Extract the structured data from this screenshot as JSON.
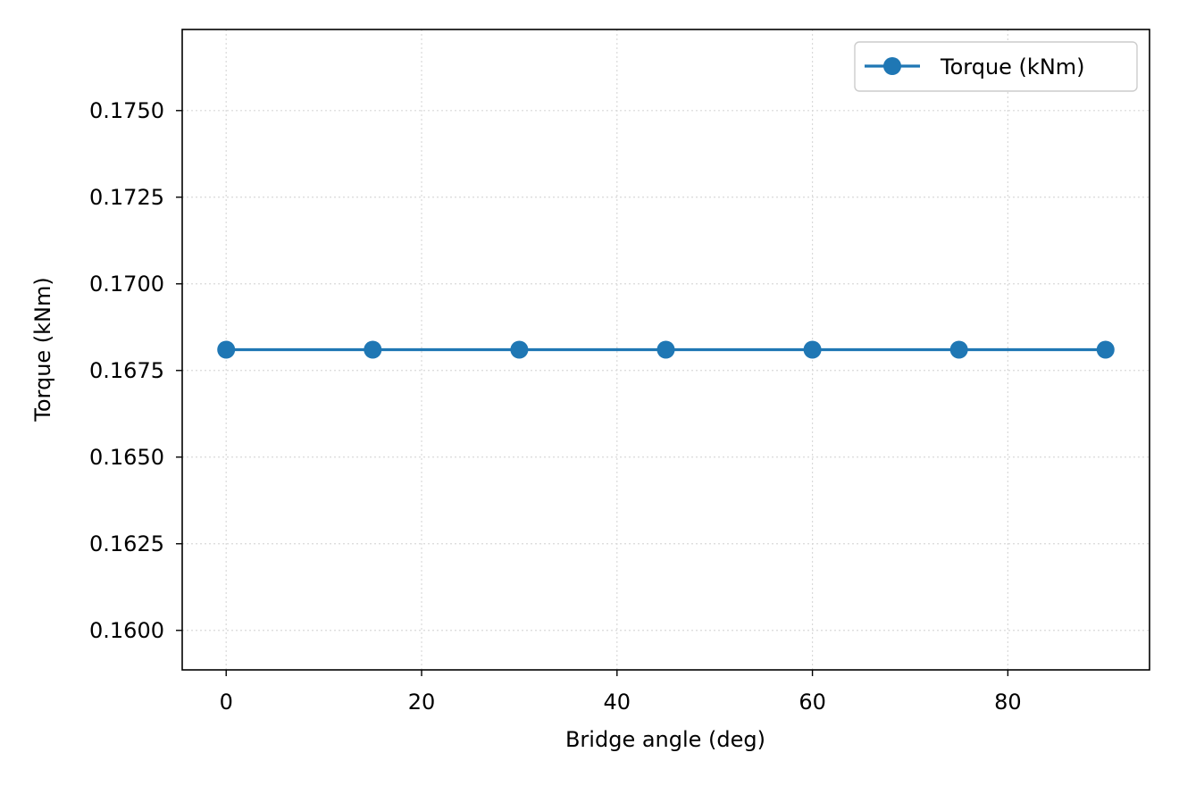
{
  "chart_data": {
    "type": "line",
    "title": "",
    "xlabel": "Bridge angle (deg)",
    "ylabel": "Torque (kNm)",
    "xlim": [
      -4.5,
      94.5
    ],
    "ylim": [
      0.15886,
      0.17734
    ],
    "xticks": [
      0,
      20,
      40,
      60,
      80
    ],
    "xtick_labels": [
      "0",
      "20",
      "40",
      "60",
      "80"
    ],
    "yticks": [
      0.16,
      0.1625,
      0.165,
      0.1675,
      0.17,
      0.1725,
      0.175
    ],
    "ytick_labels": [
      "0.1600",
      "0.1625",
      "0.1650",
      "0.1675",
      "0.1700",
      "0.1725",
      "0.1750"
    ],
    "grid": true,
    "legend_position": "top-right",
    "series": [
      {
        "name": "Torque (kNm)",
        "color": "#1f77b4",
        "marker": "circle",
        "x": [
          0,
          15,
          30,
          45,
          60,
          75,
          90
        ],
        "y": [
          0.1681,
          0.1681,
          0.1681,
          0.1681,
          0.1681,
          0.1681,
          0.1681
        ]
      }
    ]
  }
}
